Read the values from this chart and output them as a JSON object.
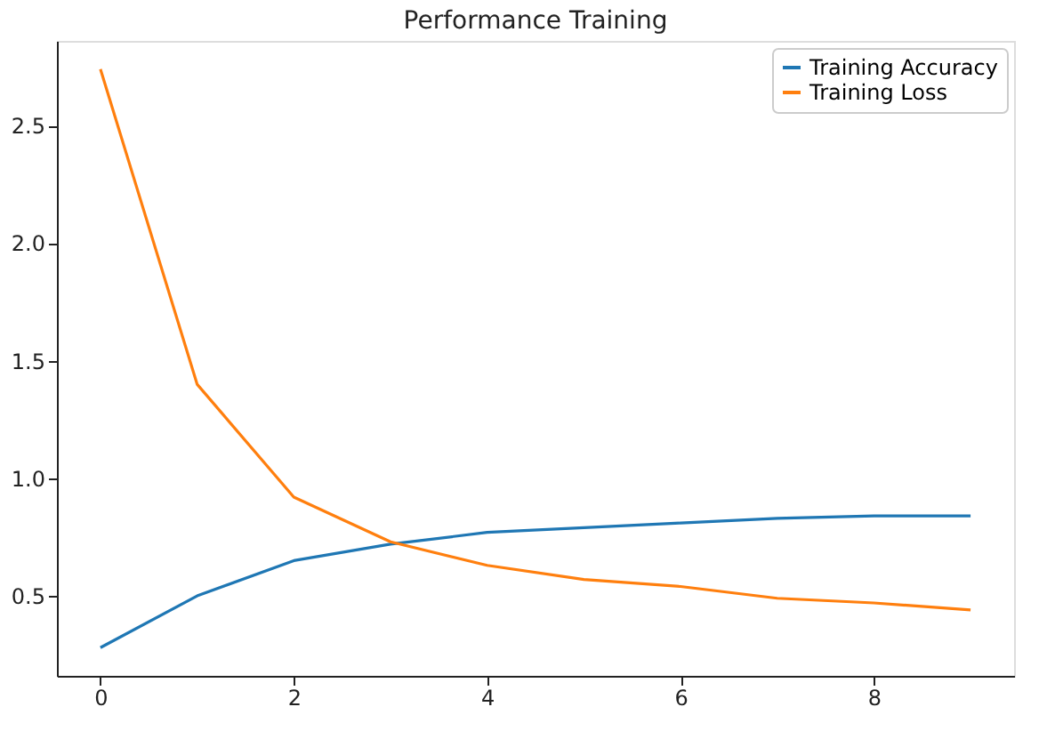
{
  "chart_data": {
    "type": "line",
    "title": "Performance Training",
    "x": [
      0,
      1,
      2,
      3,
      4,
      5,
      6,
      7,
      8,
      9
    ],
    "series": [
      {
        "name": "Training Accuracy",
        "color": "#1f77b4",
        "values": [
          0.28,
          0.5,
          0.65,
          0.72,
          0.77,
          0.79,
          0.81,
          0.83,
          0.84,
          0.84
        ]
      },
      {
        "name": "Training Loss",
        "color": "#ff7f0e",
        "values": [
          2.74,
          1.4,
          0.92,
          0.73,
          0.63,
          0.57,
          0.54,
          0.49,
          0.47,
          0.44
        ]
      }
    ],
    "xlim": [
      -0.45,
      9.45
    ],
    "xticks": [
      0,
      2,
      4,
      6,
      8
    ],
    "ylim": [
      0.16,
      2.86
    ],
    "yticks": [
      0.5,
      {
        "value": 1,
        "label": "1.0"
      },
      1.5,
      {
        "value": 2,
        "label": "2.0"
      },
      2.5
    ],
    "grid": false,
    "legend": "top right",
    "marker": "none",
    "line_style": "solid"
  }
}
